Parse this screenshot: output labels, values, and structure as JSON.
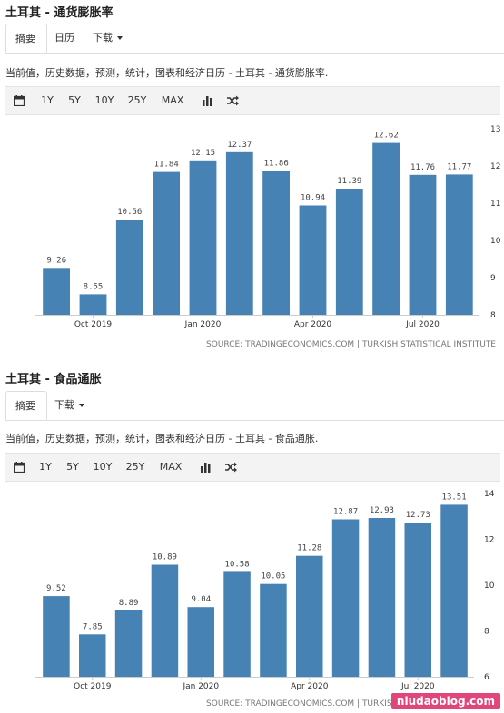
{
  "colors": {
    "bar": "#4682b4",
    "value_label": "#444444",
    "axis_text": "#333333",
    "toolbar_bg": "#f3f3f3"
  },
  "toolbar_icons": [
    "calendar-icon",
    "bar-chart-icon",
    "shuffle-icon"
  ],
  "section1": {
    "title": "土耳其 - 通货膨胀率",
    "tabs": {
      "summary": "摘要",
      "calendar": "日历",
      "download": "下载"
    },
    "description": "当前值，历史数据，预测，统计，图表和经济日历 - 土耳其 - 通货膨胀率.",
    "toolbar": {
      "range_1y": "1Y",
      "range_5y": "5Y",
      "range_10y": "10Y",
      "range_25y": "25Y",
      "range_max": "MAX"
    },
    "source": "SOURCE: TRADINGECONOMICS.COM | TURKISH STATISTICAL INSTITUTE"
  },
  "section2": {
    "title": "土耳其 - 食品通胀",
    "tabs": {
      "summary": "摘要",
      "download": "下载"
    },
    "description": "当前值，历史数据，预测，统计，图表和经济日历 - 土耳其 - 食品通胀.",
    "toolbar": {
      "range_1y": "1Y",
      "range_5y": "5Y",
      "range_10y": "10Y",
      "range_25y": "25Y",
      "range_max": "MAX"
    },
    "source": "SOURCE: TRADINGECONOMICS.COM | TURKISH STATISTICAL INSTITUTE"
  },
  "watermark": "niudaoblog.com",
  "chart_data": [
    {
      "type": "bar",
      "categories": [
        "2019-09",
        "2019-10",
        "2019-11",
        "2019-12",
        "2020-01",
        "2020-02",
        "2020-03",
        "2020-04",
        "2020-05",
        "2020-06",
        "2020-07",
        "2020-08"
      ],
      "values": [
        9.26,
        8.55,
        10.56,
        11.84,
        12.15,
        12.37,
        11.86,
        10.94,
        11.39,
        12.62,
        11.76,
        11.77
      ],
      "x_tick_labels": [
        {
          "index": 1,
          "label": "Oct 2019"
        },
        {
          "index": 4,
          "label": "Jan 2020"
        },
        {
          "index": 7,
          "label": "Apr 2020"
        },
        {
          "index": 10,
          "label": "Jul 2020"
        }
      ],
      "ylim": [
        8,
        13
      ],
      "y_ticks": [
        8,
        9,
        10,
        11,
        12,
        13
      ],
      "y_axis_side": "right",
      "grid": false,
      "title": "",
      "xlabel": "",
      "ylabel": ""
    },
    {
      "type": "bar",
      "categories": [
        "2019-09",
        "2019-10",
        "2019-11",
        "2019-12",
        "2020-01",
        "2020-02",
        "2020-03",
        "2020-04",
        "2020-05",
        "2020-06",
        "2020-07",
        "2020-08"
      ],
      "values": [
        9.52,
        7.85,
        8.89,
        10.89,
        9.04,
        10.58,
        10.05,
        11.28,
        12.87,
        12.93,
        12.73,
        13.51
      ],
      "x_tick_labels": [
        {
          "index": 1,
          "label": "Oct 2019"
        },
        {
          "index": 4,
          "label": "Jan 2020"
        },
        {
          "index": 7,
          "label": "Apr 2020"
        },
        {
          "index": 10,
          "label": "Jul 2020"
        }
      ],
      "ylim": [
        6,
        14
      ],
      "y_ticks": [
        6,
        8,
        10,
        12,
        14
      ],
      "y_axis_side": "right",
      "grid": false,
      "title": "",
      "xlabel": "",
      "ylabel": ""
    }
  ]
}
